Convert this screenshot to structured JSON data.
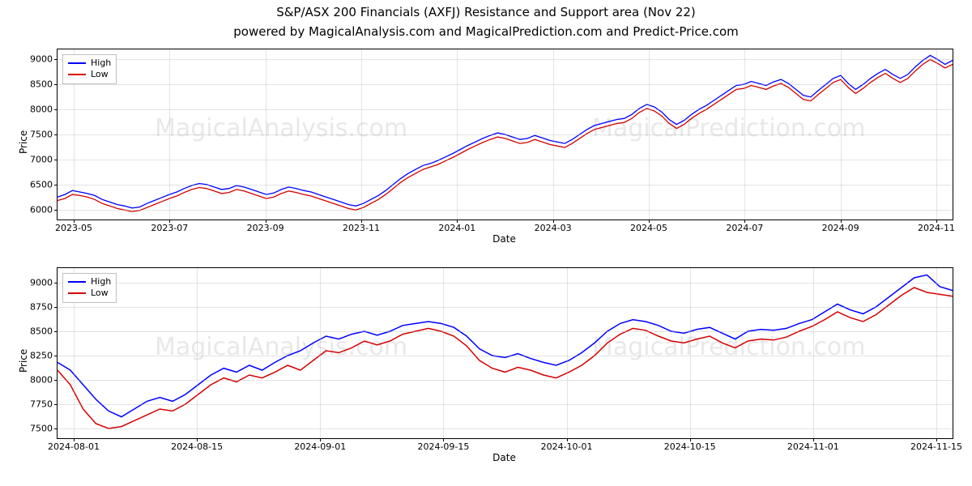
{
  "title": "S&P/ASX 200 Financials (AXFJ) Resistance and Support area (Nov 22)",
  "subtitle": "powered by MagicalAnalysis.com and MagicalPrediction.com and Predict-Price.com",
  "title_fontsize": 15,
  "subtitle_fontsize": 15,
  "font_family": "DejaVu Sans",
  "background_color": "#ffffff",
  "grid_color": "#b0b0b0",
  "border_color": "#000000",
  "watermark_color": "#a8a8a8",
  "watermark_opacity": 0.25,
  "watermark_fontsize": 30,
  "watermarks_panel1": [
    "MagicalAnalysis.com",
    "MagicalPrediction.com"
  ],
  "watermarks_panel2": [
    "MagicalAnalysis.com",
    "MagicalPrediction.com"
  ],
  "legend": {
    "items": [
      {
        "label": "High",
        "color": "#0000ff"
      },
      {
        "label": "Low",
        "color": "#d40000"
      }
    ],
    "fontsize": 11,
    "border_color": "#c0c0c0",
    "position": "upper-left"
  },
  "panel1": {
    "type": "line",
    "xlabel": "Date",
    "ylabel": "Price",
    "label_fontsize": 12,
    "line_width": 1.3,
    "ylim": [
      5800,
      9200
    ],
    "yticks": [
      6000,
      6500,
      7000,
      7500,
      8000,
      8500,
      9000
    ],
    "xticks": [
      "2023-05",
      "2023-07",
      "2023-09",
      "2023-11",
      "2024-01",
      "2024-03",
      "2024-05",
      "2024-07",
      "2024-09",
      "2024-11"
    ],
    "xrange_days": 610,
    "series": [
      {
        "name": "High",
        "color": "#0000ff",
        "values": [
          6250,
          6300,
          6380,
          6350,
          6320,
          6280,
          6200,
          6150,
          6100,
          6070,
          6030,
          6050,
          6120,
          6180,
          6240,
          6300,
          6350,
          6420,
          6480,
          6520,
          6500,
          6450,
          6400,
          6420,
          6480,
          6450,
          6400,
          6350,
          6300,
          6330,
          6400,
          6450,
          6420,
          6380,
          6350,
          6300,
          6250,
          6200,
          6150,
          6100,
          6070,
          6120,
          6200,
          6280,
          6380,
          6500,
          6620,
          6720,
          6800,
          6880,
          6920,
          6980,
          7050,
          7120,
          7200,
          7280,
          7350,
          7420,
          7480,
          7530,
          7500,
          7450,
          7400,
          7420,
          7480,
          7430,
          7380,
          7350,
          7320,
          7400,
          7500,
          7600,
          7680,
          7720,
          7760,
          7800,
          7820,
          7900,
          8020,
          8100,
          8050,
          7950,
          7800,
          7700,
          7780,
          7900,
          8000,
          8080,
          8180,
          8280,
          8380,
          8480,
          8500,
          8560,
          8520,
          8480,
          8550,
          8600,
          8520,
          8400,
          8280,
          8250,
          8380,
          8500,
          8620,
          8680,
          8520,
          8400,
          8500,
          8620,
          8720,
          8800,
          8700,
          8620,
          8700,
          8850,
          8980,
          9080,
          9000,
          8900,
          8980
        ]
      },
      {
        "name": "Low",
        "color": "#d40000",
        "values": [
          6180,
          6220,
          6300,
          6280,
          6250,
          6200,
          6120,
          6070,
          6020,
          5990,
          5960,
          5980,
          6040,
          6100,
          6160,
          6220,
          6270,
          6340,
          6400,
          6440,
          6420,
          6370,
          6320,
          6340,
          6400,
          6370,
          6320,
          6270,
          6220,
          6250,
          6320,
          6370,
          6340,
          6300,
          6270,
          6220,
          6170,
          6120,
          6070,
          6020,
          5990,
          6040,
          6120,
          6200,
          6300,
          6420,
          6540,
          6640,
          6720,
          6800,
          6850,
          6900,
          6970,
          7040,
          7120,
          7200,
          7270,
          7340,
          7400,
          7450,
          7420,
          7370,
          7320,
          7340,
          7400,
          7350,
          7300,
          7270,
          7240,
          7320,
          7420,
          7520,
          7600,
          7640,
          7680,
          7720,
          7740,
          7820,
          7940,
          8020,
          7970,
          7870,
          7720,
          7620,
          7700,
          7820,
          7920,
          8000,
          8100,
          8200,
          8300,
          8400,
          8420,
          8480,
          8440,
          8400,
          8470,
          8520,
          8440,
          8320,
          8200,
          8170,
          8300,
          8420,
          8540,
          8600,
          8440,
          8320,
          8420,
          8540,
          8640,
          8720,
          8620,
          8540,
          8620,
          8770,
          8900,
          9000,
          8920,
          8830,
          8900
        ]
      }
    ]
  },
  "panel2": {
    "type": "line",
    "xlabel": "Date",
    "ylabel": "Price",
    "label_fontsize": 12,
    "line_width": 1.5,
    "ylim": [
      7400,
      9150
    ],
    "yticks": [
      7500,
      7750,
      8000,
      8250,
      8500,
      8750,
      9000
    ],
    "xticks": [
      "2024-08-01",
      "2024-08-15",
      "2024-09-01",
      "2024-09-15",
      "2024-10-01",
      "2024-10-15",
      "2024-11-01",
      "2024-11-15"
    ],
    "xrange_days": 115,
    "series": [
      {
        "name": "High",
        "color": "#0000ff",
        "values": [
          8180,
          8100,
          7950,
          7800,
          7680,
          7620,
          7700,
          7780,
          7820,
          7780,
          7850,
          7950,
          8050,
          8120,
          8080,
          8150,
          8100,
          8180,
          8250,
          8300,
          8380,
          8450,
          8420,
          8470,
          8500,
          8460,
          8500,
          8560,
          8580,
          8600,
          8580,
          8540,
          8450,
          8320,
          8250,
          8230,
          8270,
          8220,
          8180,
          8150,
          8200,
          8280,
          8380,
          8500,
          8580,
          8620,
          8600,
          8560,
          8500,
          8480,
          8520,
          8540,
          8480,
          8420,
          8500,
          8520,
          8510,
          8530,
          8580,
          8620,
          8700,
          8780,
          8720,
          8680,
          8750,
          8850,
          8950,
          9050,
          9080,
          8960,
          8920
        ]
      },
      {
        "name": "Low",
        "color": "#d40000",
        "values": [
          8100,
          7950,
          7700,
          7550,
          7500,
          7520,
          7580,
          7640,
          7700,
          7680,
          7750,
          7850,
          7950,
          8020,
          7980,
          8050,
          8020,
          8080,
          8150,
          8100,
          8200,
          8300,
          8280,
          8330,
          8400,
          8360,
          8400,
          8470,
          8500,
          8530,
          8500,
          8450,
          8350,
          8200,
          8120,
          8080,
          8130,
          8100,
          8050,
          8020,
          8080,
          8150,
          8250,
          8380,
          8470,
          8530,
          8510,
          8450,
          8400,
          8380,
          8420,
          8450,
          8380,
          8330,
          8400,
          8420,
          8410,
          8440,
          8500,
          8550,
          8620,
          8700,
          8640,
          8600,
          8670,
          8770,
          8870,
          8950,
          8900,
          8880,
          8860
        ]
      }
    ]
  }
}
